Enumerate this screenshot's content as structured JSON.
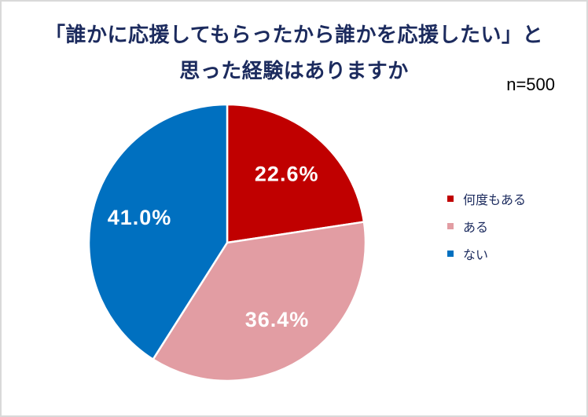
{
  "frame": {
    "background": "#FFFFFF",
    "border_color": "#D9D9D9"
  },
  "chart_data": {
    "type": "pie",
    "title": "「誰かに応援してもらったから誰かを応援したい」と思った経験はありますか",
    "title_lines": [
      "「誰かに応援してもらったから誰かを応援したい」と",
      "思った経験はありますか"
    ],
    "sample_size_label": "n=500",
    "sample_size": 500,
    "categories": [
      "何度もある",
      "ある",
      "ない"
    ],
    "values": [
      22.6,
      36.4,
      41.0
    ],
    "colors": [
      "#C00000",
      "#E29DA3",
      "#0070C0"
    ],
    "value_suffix": "%",
    "start_angle_deg": 0,
    "direction": "clockwise",
    "legend_position": "right",
    "slice_label_color": "#FFFFFF",
    "slice_border_color": "#FFFFFF",
    "title_color": "#1C2B5E",
    "legend_text_color": "#1C2B5E",
    "sample_size_color": "#000000"
  }
}
